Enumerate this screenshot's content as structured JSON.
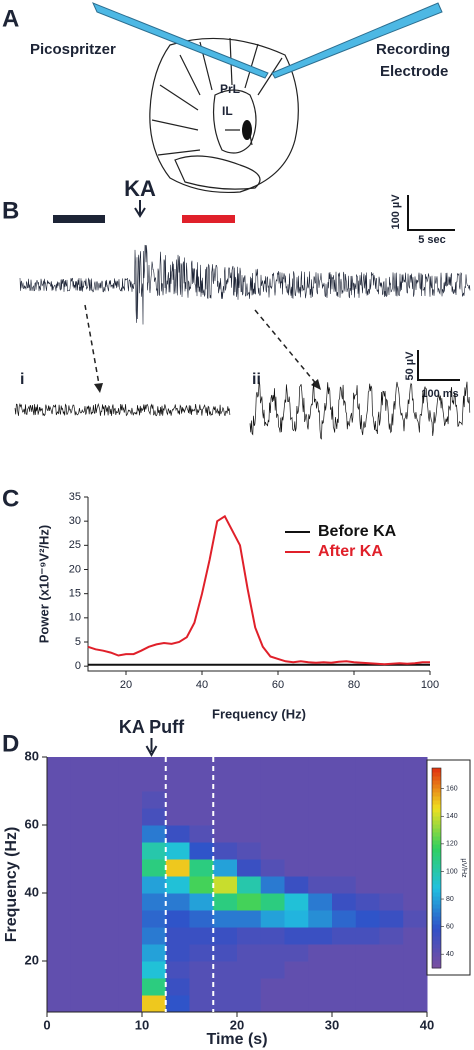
{
  "panel_labels": [
    "A",
    "B",
    "C",
    "D"
  ],
  "diagram": {
    "picospritzer": "Picospritzer",
    "recording": [
      "Recording",
      "Electrode"
    ],
    "regions": [
      "PrL",
      "IL"
    ]
  },
  "traces": {
    "stimulus": "KA",
    "scale_main": [
      "100 µV",
      "5 sec"
    ],
    "insets": [
      "i",
      "ii"
    ],
    "scale_inset": [
      "50 µV",
      "100 ms"
    ]
  },
  "chart_data": [
    {
      "type": "line",
      "xlabel": "Frequency (Hz)",
      "ylabel": "Power (x10⁻⁹V²/Hz)",
      "x": [
        10,
        12,
        14,
        16,
        18,
        20,
        22,
        24,
        26,
        28,
        30,
        32,
        34,
        36,
        38,
        40,
        42,
        44,
        46,
        48,
        50,
        52,
        54,
        56,
        58,
        60,
        62,
        64,
        66,
        68,
        70,
        72,
        74,
        76,
        78,
        80,
        82,
        84,
        86,
        88,
        90,
        92,
        94,
        96,
        98,
        100
      ],
      "series": [
        {
          "name": "Before KA",
          "color": "#111111",
          "values": [
            0.3,
            0.3,
            0.3,
            0.3,
            0.3,
            0.3,
            0.3,
            0.3,
            0.3,
            0.3,
            0.3,
            0.3,
            0.3,
            0.3,
            0.3,
            0.3,
            0.3,
            0.3,
            0.3,
            0.3,
            0.3,
            0.3,
            0.3,
            0.3,
            0.3,
            0.3,
            0.3,
            0.3,
            0.3,
            0.3,
            0.3,
            0.3,
            0.3,
            0.3,
            0.3,
            0.3,
            0.3,
            0.3,
            0.3,
            0.3,
            0.3,
            0.3,
            0.3,
            0.3,
            0.3,
            0.3
          ]
        },
        {
          "name": "After KA",
          "color": "#e0202a",
          "values": [
            4,
            3.5,
            3.2,
            2.8,
            2.2,
            2.5,
            2.5,
            3.2,
            4,
            4.5,
            4.8,
            4.6,
            5,
            6,
            9,
            15,
            22,
            30,
            31,
            28,
            25,
            16,
            8,
            4,
            2,
            1.5,
            1,
            0.8,
            1,
            0.8,
            0.7,
            0.8,
            0.7,
            0.9,
            1,
            0.8,
            0.7,
            0.6,
            0.5,
            0.4,
            0.5,
            0.6,
            0.5,
            0.6,
            0.8,
            0.8
          ]
        }
      ],
      "xlim": [
        10,
        100
      ],
      "xticks": [
        20,
        40,
        60,
        80,
        100
      ],
      "ylim": [
        -1,
        35
      ],
      "yticks": [
        0,
        5,
        10,
        15,
        20,
        25,
        30,
        35
      ],
      "legend": "upper right"
    },
    {
      "type": "heatmap",
      "xlabel": "Time (s)",
      "ylabel": "Frequency (Hz)",
      "annotation": {
        "text": "KA Puff",
        "x": 11
      },
      "markers": [
        12.5,
        17.5
      ],
      "x": [
        1.25,
        3.75,
        6.25,
        8.75,
        11.25,
        13.75,
        16.25,
        18.75,
        21.25,
        23.75,
        26.25,
        28.75,
        31.25,
        33.75,
        36.25,
        38.75
      ],
      "y": [
        7.5,
        12.5,
        17.5,
        22.5,
        27.5,
        32.5,
        37.5,
        42.5,
        47.5,
        52.5,
        57.5,
        62.5,
        67.5,
        72.5,
        77.5
      ],
      "values": [
        [
          40,
          40,
          40,
          40,
          150,
          60,
          45,
          45,
          45,
          40,
          40,
          40,
          40,
          40,
          40,
          40
        ],
        [
          40,
          40,
          40,
          40,
          110,
          55,
          45,
          45,
          45,
          40,
          40,
          40,
          40,
          40,
          40,
          40
        ],
        [
          40,
          40,
          40,
          40,
          90,
          50,
          45,
          45,
          45,
          45,
          40,
          40,
          40,
          40,
          40,
          40
        ],
        [
          40,
          40,
          40,
          40,
          80,
          55,
          50,
          50,
          45,
          45,
          45,
          40,
          40,
          40,
          40,
          40
        ],
        [
          40,
          40,
          40,
          40,
          70,
          55,
          55,
          55,
          50,
          50,
          55,
          55,
          50,
          50,
          45,
          40
        ],
        [
          40,
          40,
          40,
          40,
          65,
          60,
          65,
          70,
          70,
          80,
          85,
          75,
          65,
          60,
          55,
          45
        ],
        [
          40,
          40,
          40,
          40,
          70,
          70,
          80,
          110,
          120,
          110,
          90,
          70,
          55,
          50,
          45,
          40
        ],
        [
          40,
          40,
          40,
          40,
          80,
          90,
          120,
          140,
          100,
          70,
          55,
          45,
          45,
          40,
          40,
          40
        ],
        [
          40,
          40,
          40,
          40,
          110,
          150,
          110,
          80,
          55,
          45,
          40,
          40,
          40,
          40,
          40,
          40
        ],
        [
          40,
          40,
          40,
          40,
          100,
          90,
          60,
          50,
          45,
          40,
          40,
          40,
          40,
          40,
          40,
          40
        ],
        [
          40,
          40,
          40,
          40,
          70,
          55,
          45,
          40,
          40,
          40,
          40,
          40,
          40,
          40,
          40,
          40
        ],
        [
          40,
          40,
          40,
          40,
          50,
          40,
          40,
          40,
          40,
          40,
          40,
          40,
          40,
          40,
          40,
          40
        ],
        [
          40,
          40,
          40,
          40,
          45,
          40,
          40,
          40,
          40,
          40,
          40,
          40,
          40,
          40,
          40,
          40
        ],
        [
          40,
          40,
          40,
          40,
          40,
          40,
          40,
          40,
          40,
          40,
          40,
          40,
          40,
          40,
          40,
          40
        ],
        [
          40,
          40,
          40,
          40,
          40,
          40,
          40,
          40,
          40,
          40,
          40,
          40,
          40,
          40,
          40,
          40
        ]
      ],
      "xlim": [
        0,
        40
      ],
      "xticks": [
        0,
        10,
        20,
        30,
        40
      ],
      "ylim": [
        5,
        80
      ],
      "yticks": [
        20,
        40,
        60,
        80
      ],
      "clim": [
        30,
        175
      ],
      "cticks": [
        40,
        60,
        80,
        100,
        120,
        140,
        160
      ],
      "clabel": "µV/Hz",
      "colors": [
        "#7b4fa0",
        "#3050c8",
        "#20c0e0",
        "#30d060",
        "#f0e020",
        "#e03010"
      ]
    }
  ]
}
